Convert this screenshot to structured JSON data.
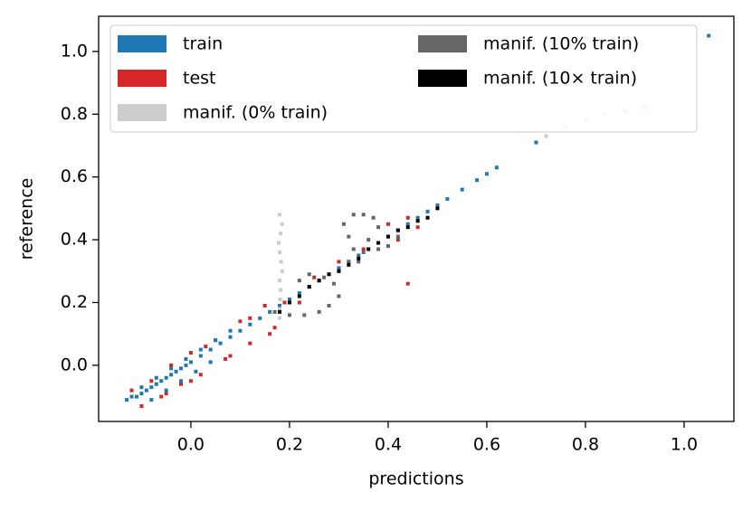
{
  "chart_data": {
    "type": "scatter",
    "xlabel": "predictions",
    "ylabel": "reference",
    "xlim": [
      -0.187,
      1.101
    ],
    "ylim": [
      -0.179,
      1.112
    ],
    "xticks": [
      {
        "value": 0,
        "label": "0.0"
      },
      0.2,
      0.4,
      0.6,
      0.8,
      {
        "value": 1,
        "label": "1.0"
      }
    ],
    "yticks": [
      {
        "value": 0,
        "label": "0.0"
      },
      0.2,
      0.4,
      0.6,
      0.8,
      {
        "value": 1,
        "label": "1.0"
      }
    ],
    "grid": false,
    "legend": "upper left",
    "series": [
      {
        "name": "train",
        "color": "#1f77b4",
        "x": [
          -0.13,
          -0.12,
          -0.11,
          -0.1,
          -0.09,
          -0.08,
          -0.07,
          -0.06,
          -0.05,
          -0.04,
          -0.03,
          -0.02,
          -0.01,
          0,
          0.02,
          0.04,
          0.06,
          0.08,
          0.1,
          0.12,
          0.14,
          0.16,
          0.18,
          0.2,
          0.22,
          0.24,
          0.26,
          0.28,
          0.3,
          0.32,
          0.34,
          0.36,
          0.38,
          0.4,
          0.42,
          0.44,
          0.46,
          0.48,
          0.5,
          0.52,
          0.55,
          0.58,
          0.6,
          0.62,
          0.7,
          1.05,
          -0.1,
          -0.07,
          -0.04,
          -0.01,
          0.02,
          0.05,
          0.08,
          -0.08,
          -0.05,
          -0.02,
          0.01,
          0.04
        ],
        "y": [
          -0.11,
          -0.1,
          -0.1,
          -0.09,
          -0.08,
          -0.07,
          -0.06,
          -0.05,
          -0.04,
          -0.03,
          -0.02,
          -0.01,
          0,
          0.01,
          0.03,
          0.05,
          0.07,
          0.09,
          0.11,
          0.13,
          0.15,
          0.17,
          0.19,
          0.21,
          0.23,
          0.25,
          0.27,
          0.29,
          0.31,
          0.33,
          0.35,
          0.37,
          0.39,
          0.41,
          0.43,
          0.45,
          0.47,
          0.49,
          0.51,
          0.53,
          0.56,
          0.59,
          0.61,
          0.63,
          0.71,
          1.05,
          -0.07,
          -0.04,
          -0.01,
          0.02,
          0.05,
          0.08,
          0.11,
          -0.11,
          -0.08,
          -0.05,
          -0.02,
          0.01
        ]
      },
      {
        "name": "test",
        "color": "#d62728",
        "x": [
          -0.12,
          -0.1,
          -0.08,
          -0.06,
          -0.04,
          -0.02,
          0,
          0.02,
          0.05,
          0.08,
          0.1,
          0.12,
          0.15,
          0.17,
          0.19,
          0.22,
          0.25,
          0.3,
          0.35,
          0.4,
          0.42,
          0.44,
          0.46,
          -0.05,
          0,
          0.03,
          0.07,
          0.12,
          0.16,
          0.44
        ],
        "y": [
          -0.08,
          -0.13,
          -0.05,
          -0.1,
          0,
          -0.06,
          0.04,
          -0.03,
          0.08,
          0.03,
          0.14,
          0.07,
          0.19,
          0.12,
          0.2,
          0.2,
          0.28,
          0.33,
          0.37,
          0.45,
          0.4,
          0.47,
          0.44,
          -0.09,
          -0.05,
          0.06,
          0.02,
          0.15,
          0.1,
          0.26
        ]
      },
      {
        "name": "manif. (0% train)",
        "color": "#cccccc",
        "x": [
          0.18,
          0.18,
          0.181,
          0.182,
          0.18,
          0.185,
          0.183,
          0.18,
          0.178,
          0.182,
          0.185,
          0.18,
          0.72,
          0.76,
          0.8,
          0.84,
          0.88,
          0.92
        ],
        "y": [
          0.15,
          0.18,
          0.21,
          0.24,
          0.27,
          0.3,
          0.33,
          0.36,
          0.39,
          0.42,
          0.45,
          0.48,
          0.73,
          0.76,
          0.78,
          0.8,
          0.81,
          0.82
        ]
      },
      {
        "name": "manif. (10% train)",
        "color": "#666666",
        "x": [
          0.17,
          0.2,
          0.23,
          0.26,
          0.28,
          0.3,
          0.29,
          0.27,
          0.24,
          0.22,
          0.3,
          0.32,
          0.33,
          0.32,
          0.31,
          0.33,
          0.35,
          0.37,
          0.38,
          0.36,
          0.35,
          0.34,
          0.38,
          0.4,
          0.42
        ],
        "y": [
          0.17,
          0.16,
          0.16,
          0.17,
          0.19,
          0.22,
          0.26,
          0.28,
          0.29,
          0.27,
          0.3,
          0.33,
          0.37,
          0.41,
          0.45,
          0.48,
          0.48,
          0.47,
          0.44,
          0.4,
          0.36,
          0.33,
          0.37,
          0.38,
          0.41
        ]
      },
      {
        "name": "manif. (10× train)",
        "color": "#000000",
        "x": [
          0.18,
          0.2,
          0.22,
          0.24,
          0.26,
          0.28,
          0.3,
          0.32,
          0.34,
          0.36,
          0.38,
          0.4,
          0.42,
          0.44,
          0.46,
          0.48,
          0.5
        ],
        "y": [
          0.17,
          0.2,
          0.22,
          0.25,
          0.27,
          0.29,
          0.3,
          0.32,
          0.34,
          0.37,
          0.39,
          0.41,
          0.43,
          0.44,
          0.46,
          0.47,
          0.5
        ]
      }
    ]
  }
}
